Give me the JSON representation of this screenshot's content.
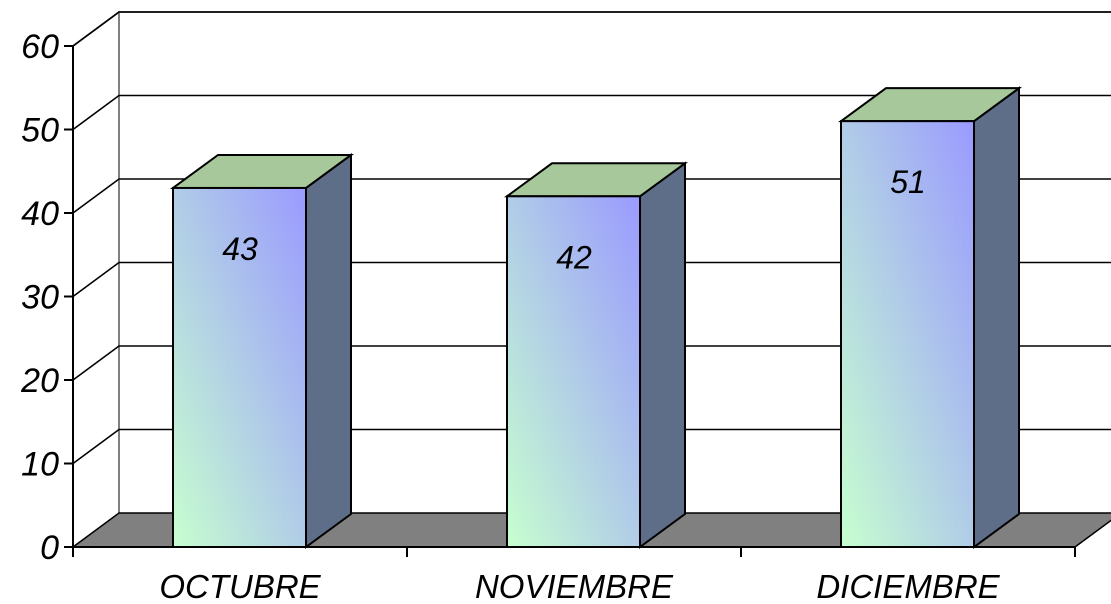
{
  "chart_data": {
    "type": "bar",
    "style": "3d-column",
    "categories": [
      "OCTUBRE",
      "NOVIEMBRE",
      "DICIEMBRE"
    ],
    "values": [
      43,
      42,
      51
    ],
    "data_labels": [
      "43",
      "42",
      "51"
    ],
    "ylim": [
      0,
      60
    ],
    "yticks": [
      0,
      10,
      20,
      30,
      40,
      50,
      60
    ],
    "ytick_labels": [
      "0",
      "10",
      "20",
      "30",
      "40",
      "50",
      "60"
    ],
    "title": "",
    "xlabel": "",
    "ylabel": "",
    "grid": true,
    "legend": "none",
    "colors": {
      "bar_top": "#a6c89a",
      "bar_side": "#5f6e88",
      "bar_front_start": "#c7ffcf",
      "bar_front_end": "#9a9aff",
      "floor": "#808080",
      "grid": "#000000"
    }
  }
}
